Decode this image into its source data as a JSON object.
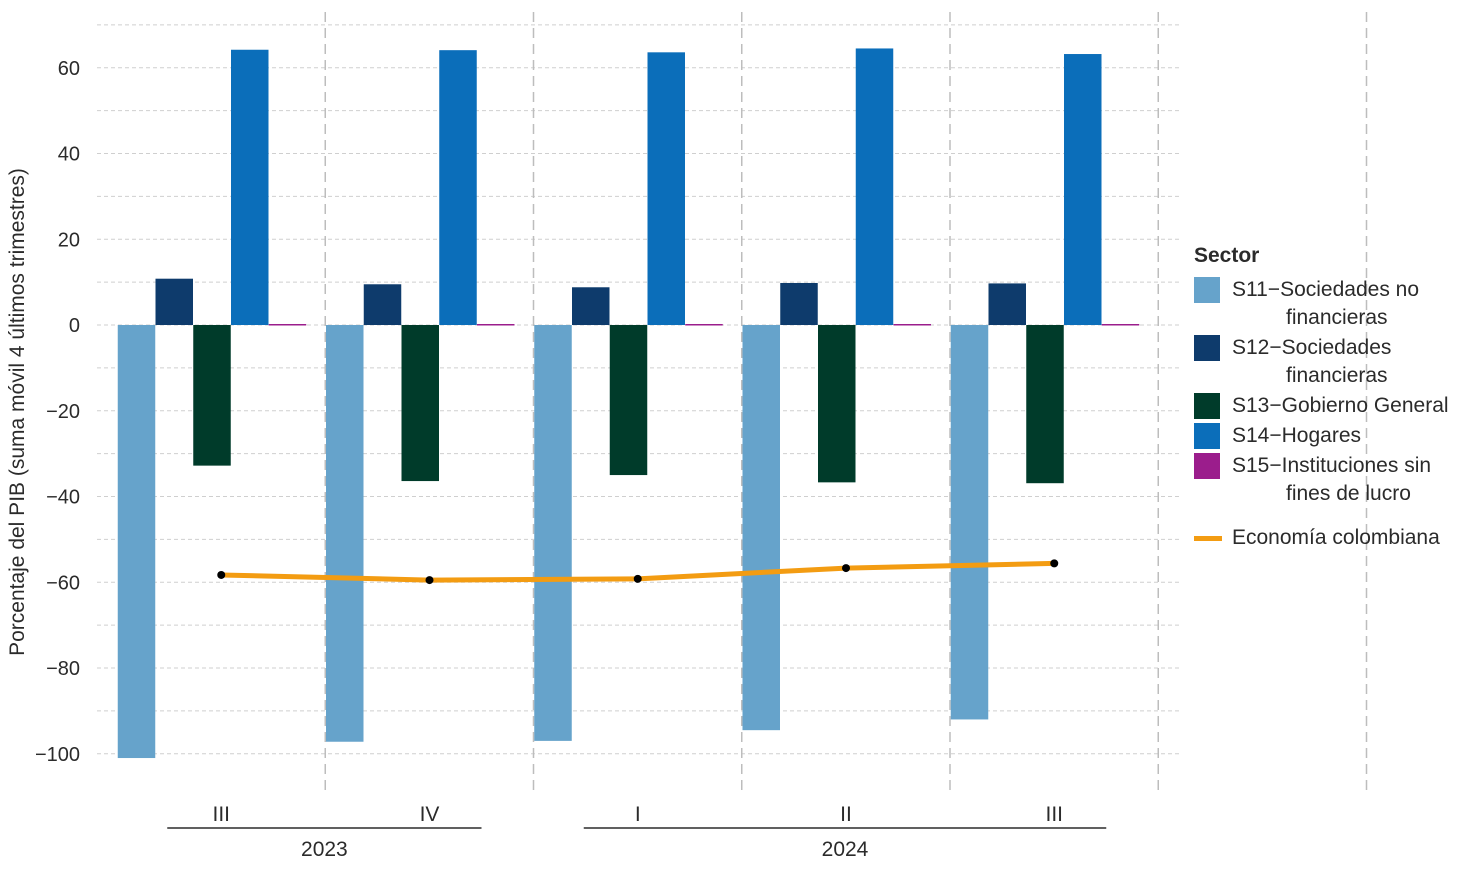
{
  "chart_data": {
    "type": "bar",
    "ylabel": "Porcentaje del PIB (suma móvil 4 últimos trimestres)",
    "ylim": [
      -105,
      72
    ],
    "yticks": [
      60,
      40,
      20,
      0,
      -20,
      -40,
      -60,
      -80,
      -100
    ],
    "ytick_labels": [
      "60",
      "40",
      "20",
      "0",
      "−20",
      "−40",
      "−60",
      "−80",
      "−100"
    ],
    "categories": [
      "III",
      "IV",
      "I",
      "II",
      "III"
    ],
    "years": [
      {
        "label": "2023",
        "from": 0,
        "to": 1
      },
      {
        "label": "2024",
        "from": 2,
        "to": 4
      }
    ],
    "series": [
      {
        "name": "S11−Sociedades no financieras",
        "color": "#66A3CB",
        "values": [
          -101,
          -97.2,
          -97,
          -94.5,
          -92
        ]
      },
      {
        "name": "S12−Sociedades financieras",
        "color": "#0E3B6C",
        "values": [
          10.8,
          9.5,
          8.8,
          9.8,
          9.7
        ]
      },
      {
        "name": "S13−Gobierno General",
        "color": "#003B2A",
        "values": [
          -32.8,
          -36.4,
          -35,
          -36.7,
          -36.9
        ]
      },
      {
        "name": "S14−Hogares",
        "color": "#0B6EBA",
        "values": [
          64.2,
          64.1,
          63.6,
          64.5,
          63.2
        ]
      },
      {
        "name": "S15−Instituciones sin fines de lucro",
        "color": "#9B1D8C",
        "values": [
          0.3,
          0.3,
          0.3,
          0.3,
          0.3
        ]
      }
    ],
    "line": {
      "name": "Economía colombiana",
      "color": "#F39C12",
      "values": [
        -58.3,
        -59.5,
        -59.2,
        -56.7,
        -55.6
      ]
    }
  },
  "legend": {
    "title": "Sector",
    "items": [
      {
        "label": "S11−Sociedades no",
        "label2": "financieras",
        "color": "#66A3CB"
      },
      {
        "label": "S12−Sociedades",
        "label2": "financieras",
        "color": "#0E3B6C"
      },
      {
        "label": "S13−Gobierno General",
        "label2": "",
        "color": "#003B2A"
      },
      {
        "label": "S14−Hogares",
        "label2": "",
        "color": "#0B6EBA"
      },
      {
        "label": "S15−Instituciones sin",
        "label2": "fines de lucro",
        "color": "#9B1D8C"
      }
    ],
    "line_label": "Economía colombiana"
  }
}
